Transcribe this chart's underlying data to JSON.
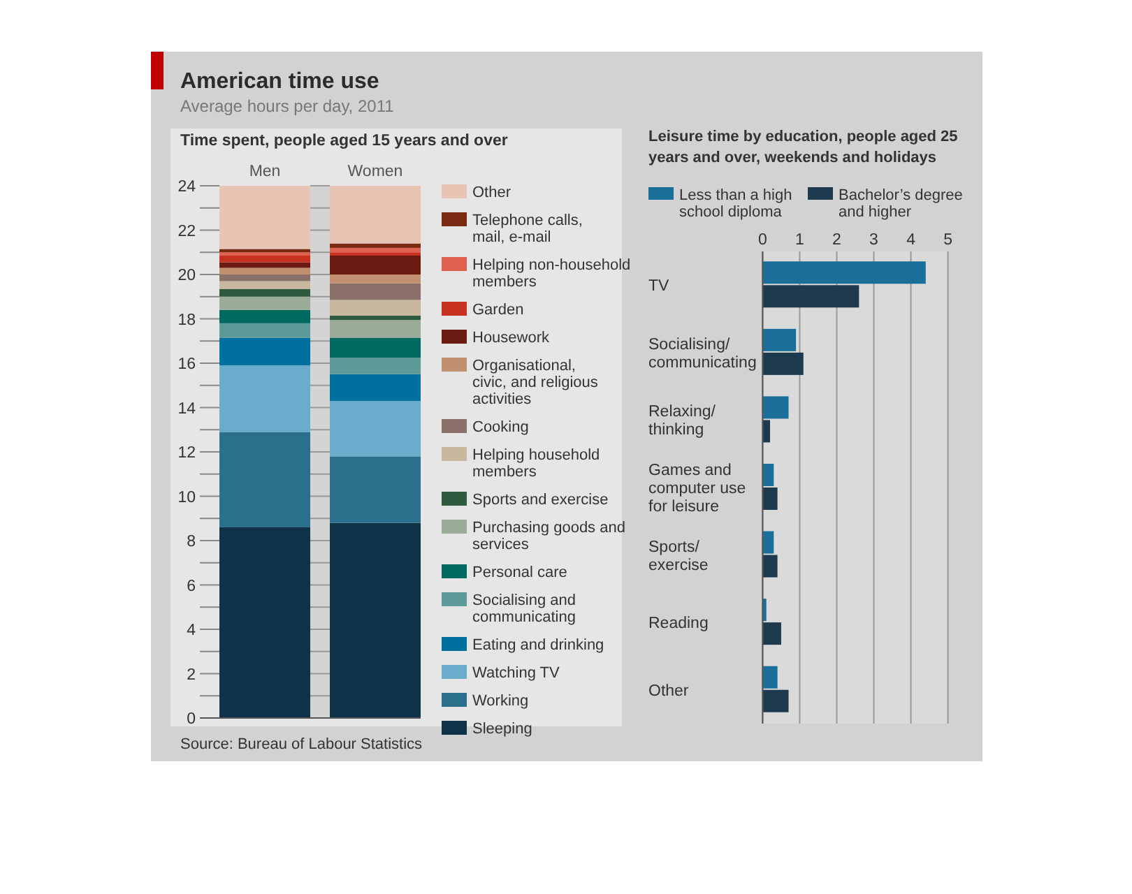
{
  "chart_data": [
    {
      "type": "bar",
      "title": "American time use",
      "subtitle": "Average hours per day, 2011",
      "annotations": [
        "Time spent, people aged 15 years and over",
        "Source: Bureau of Labour Statistics"
      ],
      "stacked": true,
      "categories": [
        "Men",
        "Women"
      ],
      "ylim": [
        0,
        24
      ],
      "yticks": [
        0,
        {
          "value": 1,
          "label": null
        },
        2,
        {
          "value": 3,
          "label": null
        },
        4,
        {
          "value": 5,
          "label": null
        },
        6,
        {
          "value": 7,
          "label": null
        },
        8,
        {
          "value": 9,
          "label": null
        },
        10,
        {
          "value": 11,
          "label": null
        },
        12,
        {
          "value": 13,
          "label": null
        },
        14,
        {
          "value": 15,
          "label": null
        },
        16,
        {
          "value": 17,
          "label": null
        },
        18,
        {
          "value": 19,
          "label": null
        },
        20,
        {
          "value": 21,
          "label": null
        },
        22,
        {
          "value": 23,
          "label": null
        },
        24
      ],
      "legend": "right",
      "series": [
        {
          "name": "Sleeping",
          "color": "#0e3349",
          "values": [
            8.6,
            8.8
          ]
        },
        {
          "name": "Working",
          "color": "#2a6f8c",
          "values": [
            4.3,
            3.0
          ]
        },
        {
          "name": "Watching TV",
          "color": "#6aaccc",
          "values": [
            3.0,
            2.5
          ]
        },
        {
          "name": "Eating and drinking",
          "color": "#00709e",
          "values": [
            1.25,
            1.2
          ]
        },
        {
          "name": "Socialising and communicating",
          "color": "#5e9a98",
          "values": [
            0.65,
            0.75
          ]
        },
        {
          "name": "Personal care",
          "color": "#006a60",
          "values": [
            0.6,
            0.9
          ]
        },
        {
          "name": "Purchasing goods and services",
          "color": "#9aab98",
          "values": [
            0.6,
            0.8
          ]
        },
        {
          "name": "Sports and exercise",
          "color": "#2e5a40",
          "values": [
            0.35,
            0.2
          ]
        },
        {
          "name": "Helping household members",
          "color": "#c8b8a0",
          "values": [
            0.35,
            0.7
          ]
        },
        {
          "name": "Cooking",
          "color": "#8a7068",
          "values": [
            0.3,
            0.75
          ]
        },
        {
          "name": "Organisational, civic, and religious activities",
          "color": "#c09070",
          "values": [
            0.3,
            0.4
          ]
        },
        {
          "name": "Housework",
          "color": "#6a1a10",
          "values": [
            0.25,
            0.85
          ]
        },
        {
          "name": "Garden",
          "color": "#c83020",
          "values": [
            0.3,
            0.15
          ]
        },
        {
          "name": "Helping non-household members",
          "color": "#e06050",
          "values": [
            0.15,
            0.2
          ]
        },
        {
          "name": "Telephone calls, mail, e-mail",
          "color": "#7a2a10",
          "values": [
            0.15,
            0.2
          ]
        },
        {
          "name": "Other",
          "color": "#e8c4b4",
          "values": [
            2.85,
            2.6
          ]
        }
      ]
    },
    {
      "type": "bar",
      "title": "Leisure time by education, people aged 25 years and over, weekends and holidays",
      "orientation": "horizontal",
      "categories": [
        "TV",
        "Socialising/ communicating",
        "Relaxing/ thinking",
        "Games and computer use for leisure",
        "Sports/ exercise",
        "Reading",
        "Other"
      ],
      "xlim": [
        0,
        5
      ],
      "xticks": [
        0,
        1,
        2,
        3,
        4,
        5
      ],
      "grid": "x",
      "legend": "top",
      "series": [
        {
          "name": "Less than a high school diploma",
          "color": "#1a6f9a",
          "values": [
            4.4,
            0.9,
            0.7,
            0.3,
            0.3,
            0.1,
            0.4
          ]
        },
        {
          "name": "Bachelor’s degree and higher",
          "color": "#1e3a4e",
          "values": [
            2.6,
            1.1,
            0.2,
            0.4,
            0.4,
            0.5,
            0.7
          ]
        }
      ]
    }
  ]
}
